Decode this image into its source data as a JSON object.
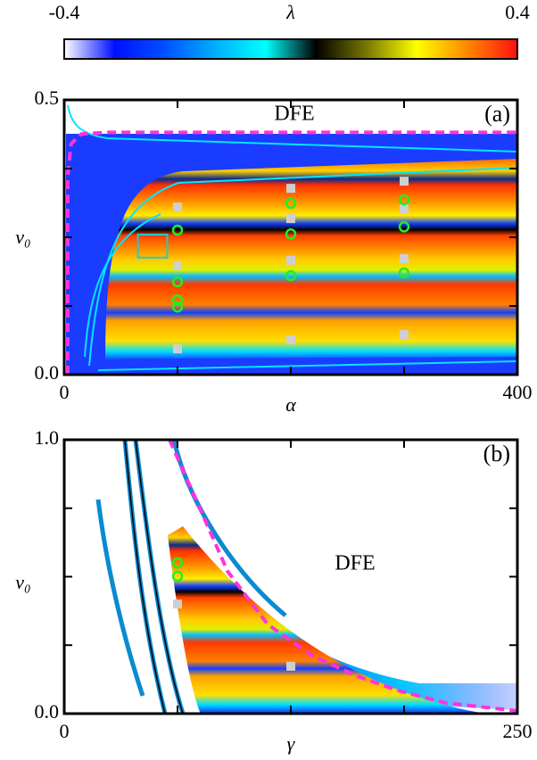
{
  "colorbar": {
    "label": "λ",
    "lim": [
      -0.4,
      0.4
    ],
    "ticks": [
      -0.4,
      0.4
    ],
    "colors": [
      "#ffffff",
      "#0010ff",
      "#0050ff",
      "#00b0ff",
      "#00ffff",
      "#000000",
      "#777700",
      "#ffff00",
      "#ff8800",
      "#ff1010"
    ]
  },
  "chart_data": [
    {
      "type": "scatter",
      "panel_label": "(a)",
      "region_label": "DFE",
      "xlabel": "α",
      "ylabel": "v₀",
      "xlim": [
        0,
        400
      ],
      "xticks": [
        0,
        400
      ],
      "xminorticks": [
        100,
        200,
        300
      ],
      "ylim": [
        0,
        0.5
      ],
      "yticks": [
        {
          "value": 0,
          "label": "0.0"
        },
        {
          "value": 0.5,
          "label": "0.5"
        }
      ],
      "yminorticks": [
        0.125,
        0.25,
        0.375
      ],
      "highlight_box": {
        "xlim": [
          65,
          91
        ],
        "ylim": [
          0.213,
          0.255
        ],
        "color": "#22cccc"
      },
      "series": [
        {
          "marker": "square",
          "color": "#cfcfcf",
          "x": [
            100,
            100,
            100,
            200,
            200,
            200,
            200,
            300,
            300,
            300,
            300
          ],
          "y": [
            0.305,
            0.198,
            0.047,
            0.339,
            0.284,
            0.208,
            0.063,
            0.352,
            0.302,
            0.211,
            0.073
          ]
        },
        {
          "marker": "circle",
          "color": "#22ee22",
          "x": [
            100,
            100,
            100,
            100,
            200,
            200,
            200,
            300,
            300,
            300
          ],
          "y": [
            0.263,
            0.169,
            0.136,
            0.123,
            0.312,
            0.256,
            0.18,
            0.318,
            0.269,
            0.185
          ]
        },
        {
          "marker": "dashed-line",
          "color": "#ff33dd",
          "x": [
            3,
            3,
            6,
            15,
            40,
            400
          ],
          "y": [
            0,
            0.36,
            0.42,
            0.438,
            0.441,
            0.441
          ]
        }
      ]
    },
    {
      "type": "scatter",
      "panel_label": "(b)",
      "region_label": "DFE",
      "xlabel": "γ",
      "ylabel": "v₀",
      "xlim": [
        0,
        250
      ],
      "xticks": [
        0,
        250
      ],
      "xminorticks": [
        62.5,
        125,
        187.5
      ],
      "ylim": [
        0,
        1
      ],
      "yticks": [
        {
          "value": 0,
          "label": "0.0"
        },
        {
          "value": 1,
          "label": "1.0"
        }
      ],
      "yminorticks": [
        0.25,
        0.5,
        0.75
      ],
      "series": [
        {
          "marker": "square",
          "color": "#cfcfcf",
          "x": [
            62.5,
            125
          ],
          "y": [
            0.4,
            0.173
          ]
        },
        {
          "marker": "circle",
          "color": "#22ee22",
          "x": [
            62.5,
            62.5
          ],
          "y": [
            0.55,
            0.502
          ]
        },
        {
          "marker": "dashed-line",
          "color": "#ff33dd",
          "x": [
            58.1,
            72.8,
            90.1,
            112.2,
            136.8,
            161.4,
            186,
            210.6,
            250
          ],
          "y": [
            1,
            0.78,
            0.52,
            0.326,
            0.212,
            0.137,
            0.081,
            0.039,
            0.01
          ]
        }
      ]
    }
  ]
}
